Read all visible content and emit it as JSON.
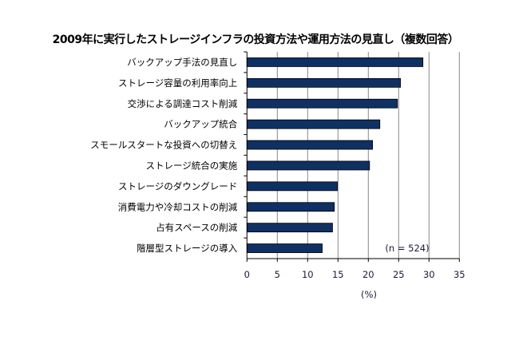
{
  "chart_data": {
    "type": "bar",
    "orientation": "horizontal",
    "title": "2009年に実行したストレージインフラの投資方法や運用方法の見直し（複数回答）",
    "categories": [
      "バックアップ手法の見直し",
      "ストレージ容量の利用率向上",
      "交渉による調達コスト削減",
      "バックアップ統合",
      "スモールスタートな投資への切替え",
      "ストレージ統合の実施",
      "ストレージのダウングレード",
      "消費電力や冷却コストの削減",
      "占有スペースの削減",
      "階層型ストレージの導入"
    ],
    "values": [
      29.0,
      25.3,
      24.8,
      21.9,
      20.7,
      20.2,
      14.9,
      14.4,
      14.1,
      12.4
    ],
    "xlabel": "(%)",
    "xlim": [
      0,
      35
    ],
    "xticks": [
      "0",
      "5",
      "10",
      "15",
      "20",
      "25",
      "30",
      "35"
    ],
    "annotation": "(n = 524)",
    "grid": "vertical",
    "bar_color": "#0f3063"
  }
}
